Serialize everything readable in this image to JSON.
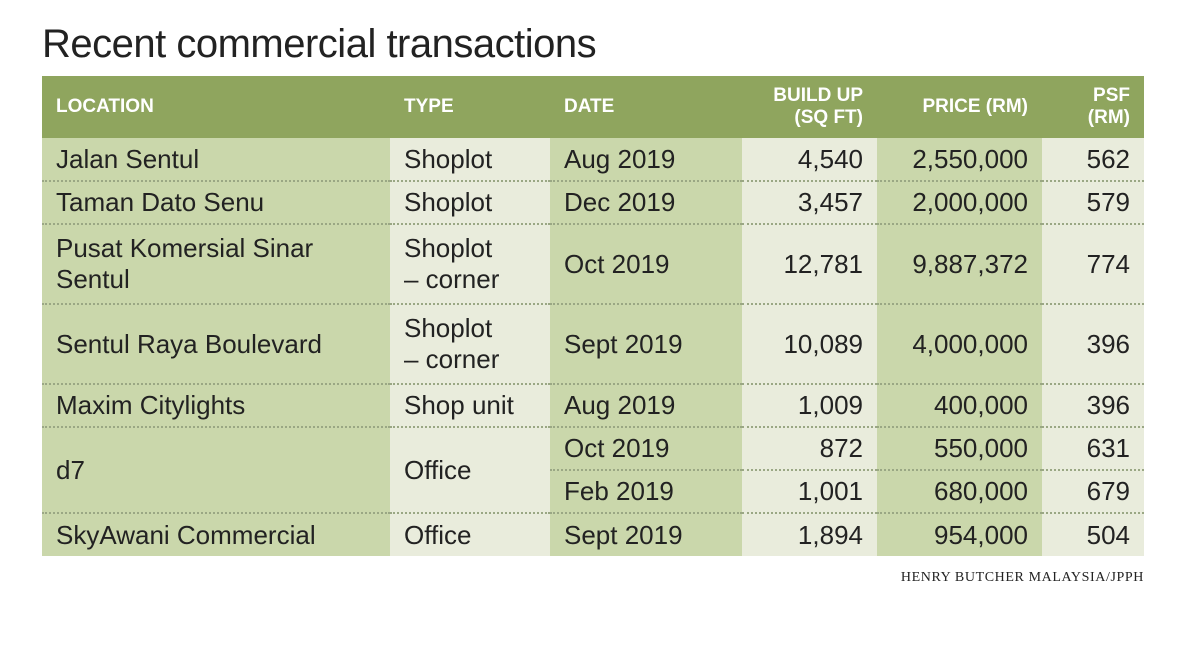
{
  "title": "Recent commercial transactions",
  "headers": {
    "location": "LOCATION",
    "type": "TYPE",
    "date": "DATE",
    "build_up_line1": "BUILD UP",
    "build_up_line2": "(SQ FT)",
    "price": "PRICE (RM)",
    "psf_line1": "PSF",
    "psf_line2": "(RM)"
  },
  "rows": [
    {
      "location": "Jalan Sentul",
      "type": "Shoplot",
      "date": "Aug 2019",
      "build_up": "4,540",
      "price": "2,550,000",
      "psf": "562"
    },
    {
      "location": "Taman Dato Senu",
      "type": "Shoplot",
      "date": "Dec 2019",
      "build_up": "3,457",
      "price": "2,000,000",
      "psf": "579"
    },
    {
      "location_line1": "Pusat Komersial Sinar",
      "location_line2": "Sentul",
      "type_line1": "Shoplot",
      "type_line2": "– corner",
      "date": "Oct 2019",
      "build_up": "12,781",
      "price": "9,887,372",
      "psf": "774"
    },
    {
      "location": "Sentul Raya Boulevard",
      "type_line1": "Shoplot",
      "type_line2": "– corner",
      "date": "Sept 2019",
      "build_up": "10,089",
      "price": "4,000,000",
      "psf": "396"
    },
    {
      "location": "Maxim Citylights",
      "type": "Shop unit",
      "date": "Aug 2019",
      "build_up": "1,009",
      "price": "400,000",
      "psf": "396"
    },
    {
      "location": "d7",
      "type": "Office",
      "date": "Oct 2019",
      "build_up": "872",
      "price": "550,000",
      "psf": "631"
    },
    {
      "date": "Feb 2019",
      "build_up": "1,001",
      "price": "680,000",
      "psf": "679"
    },
    {
      "location": "SkyAwani Commercial",
      "type": "Office",
      "date": "Sept 2019",
      "build_up": "1,894",
      "price": "954,000",
      "psf": "504"
    }
  ],
  "source": "HENRY BUTCHER MALAYSIA/JPPH"
}
